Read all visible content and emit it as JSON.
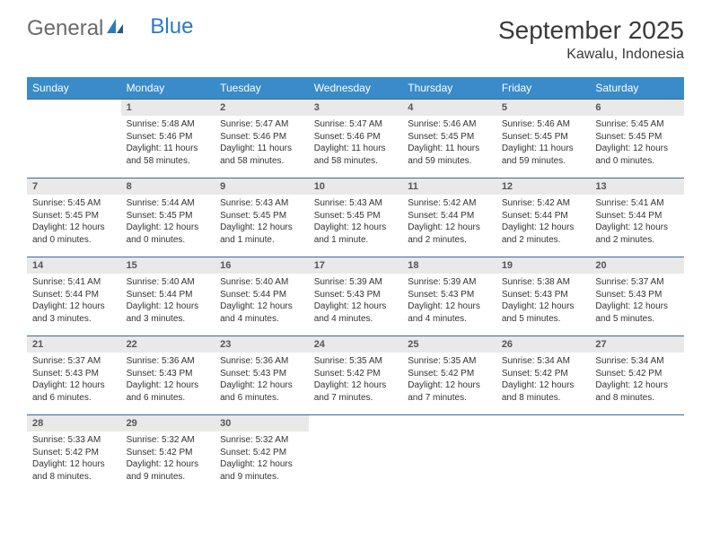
{
  "logo": {
    "word1": "General",
    "word2": "Blue"
  },
  "title": "September 2025",
  "location": "Kawalu, Indonesia",
  "colors": {
    "header_bg": "#3a8bc9",
    "header_text": "#ffffff",
    "daynum_bg": "#e9e9e9",
    "rule": "#3a6a9a",
    "logo_grey": "#6a6a6a",
    "logo_blue": "#2b7bbf"
  },
  "weekdays": [
    "Sunday",
    "Monday",
    "Tuesday",
    "Wednesday",
    "Thursday",
    "Friday",
    "Saturday"
  ],
  "weeks": [
    [
      null,
      {
        "n": "1",
        "sr": "5:48 AM",
        "ss": "5:46 PM",
        "dl": "11 hours and 58 minutes."
      },
      {
        "n": "2",
        "sr": "5:47 AM",
        "ss": "5:46 PM",
        "dl": "11 hours and 58 minutes."
      },
      {
        "n": "3",
        "sr": "5:47 AM",
        "ss": "5:46 PM",
        "dl": "11 hours and 58 minutes."
      },
      {
        "n": "4",
        "sr": "5:46 AM",
        "ss": "5:45 PM",
        "dl": "11 hours and 59 minutes."
      },
      {
        "n": "5",
        "sr": "5:46 AM",
        "ss": "5:45 PM",
        "dl": "11 hours and 59 minutes."
      },
      {
        "n": "6",
        "sr": "5:45 AM",
        "ss": "5:45 PM",
        "dl": "12 hours and 0 minutes."
      }
    ],
    [
      {
        "n": "7",
        "sr": "5:45 AM",
        "ss": "5:45 PM",
        "dl": "12 hours and 0 minutes."
      },
      {
        "n": "8",
        "sr": "5:44 AM",
        "ss": "5:45 PM",
        "dl": "12 hours and 0 minutes."
      },
      {
        "n": "9",
        "sr": "5:43 AM",
        "ss": "5:45 PM",
        "dl": "12 hours and 1 minute."
      },
      {
        "n": "10",
        "sr": "5:43 AM",
        "ss": "5:45 PM",
        "dl": "12 hours and 1 minute."
      },
      {
        "n": "11",
        "sr": "5:42 AM",
        "ss": "5:44 PM",
        "dl": "12 hours and 2 minutes."
      },
      {
        "n": "12",
        "sr": "5:42 AM",
        "ss": "5:44 PM",
        "dl": "12 hours and 2 minutes."
      },
      {
        "n": "13",
        "sr": "5:41 AM",
        "ss": "5:44 PM",
        "dl": "12 hours and 2 minutes."
      }
    ],
    [
      {
        "n": "14",
        "sr": "5:41 AM",
        "ss": "5:44 PM",
        "dl": "12 hours and 3 minutes."
      },
      {
        "n": "15",
        "sr": "5:40 AM",
        "ss": "5:44 PM",
        "dl": "12 hours and 3 minutes."
      },
      {
        "n": "16",
        "sr": "5:40 AM",
        "ss": "5:44 PM",
        "dl": "12 hours and 4 minutes."
      },
      {
        "n": "17",
        "sr": "5:39 AM",
        "ss": "5:43 PM",
        "dl": "12 hours and 4 minutes."
      },
      {
        "n": "18",
        "sr": "5:39 AM",
        "ss": "5:43 PM",
        "dl": "12 hours and 4 minutes."
      },
      {
        "n": "19",
        "sr": "5:38 AM",
        "ss": "5:43 PM",
        "dl": "12 hours and 5 minutes."
      },
      {
        "n": "20",
        "sr": "5:37 AM",
        "ss": "5:43 PM",
        "dl": "12 hours and 5 minutes."
      }
    ],
    [
      {
        "n": "21",
        "sr": "5:37 AM",
        "ss": "5:43 PM",
        "dl": "12 hours and 6 minutes."
      },
      {
        "n": "22",
        "sr": "5:36 AM",
        "ss": "5:43 PM",
        "dl": "12 hours and 6 minutes."
      },
      {
        "n": "23",
        "sr": "5:36 AM",
        "ss": "5:43 PM",
        "dl": "12 hours and 6 minutes."
      },
      {
        "n": "24",
        "sr": "5:35 AM",
        "ss": "5:42 PM",
        "dl": "12 hours and 7 minutes."
      },
      {
        "n": "25",
        "sr": "5:35 AM",
        "ss": "5:42 PM",
        "dl": "12 hours and 7 minutes."
      },
      {
        "n": "26",
        "sr": "5:34 AM",
        "ss": "5:42 PM",
        "dl": "12 hours and 8 minutes."
      },
      {
        "n": "27",
        "sr": "5:34 AM",
        "ss": "5:42 PM",
        "dl": "12 hours and 8 minutes."
      }
    ],
    [
      {
        "n": "28",
        "sr": "5:33 AM",
        "ss": "5:42 PM",
        "dl": "12 hours and 8 minutes."
      },
      {
        "n": "29",
        "sr": "5:32 AM",
        "ss": "5:42 PM",
        "dl": "12 hours and 9 minutes."
      },
      {
        "n": "30",
        "sr": "5:32 AM",
        "ss": "5:42 PM",
        "dl": "12 hours and 9 minutes."
      },
      null,
      null,
      null,
      null
    ]
  ],
  "labels": {
    "sunrise": "Sunrise:",
    "sunset": "Sunset:",
    "daylight": "Daylight:"
  }
}
